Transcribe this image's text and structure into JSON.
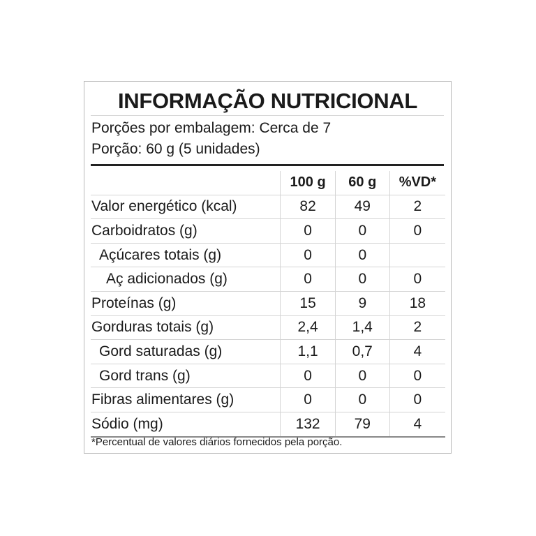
{
  "title": "INFORMAÇÃO NUTRICIONAL",
  "servings_per_package": "Porções por embalagem: Cerca de 7",
  "serving_size": "Porção: 60 g (5 unidades)",
  "columns": [
    "",
    "100 g",
    "60 g",
    "%VD*"
  ],
  "rows": [
    {
      "label": "Valor energético (kcal)",
      "indent": 0,
      "v100": "82",
      "v60": "49",
      "vd": "2"
    },
    {
      "label": "Carboidratos (g)",
      "indent": 0,
      "v100": "0",
      "v60": "0",
      "vd": "0"
    },
    {
      "label": "Açúcares totais (g)",
      "indent": 1,
      "v100": "0",
      "v60": "0",
      "vd": ""
    },
    {
      "label": "Aç adicionados (g)",
      "indent": 2,
      "v100": "0",
      "v60": "0",
      "vd": "0"
    },
    {
      "label": "Proteínas (g)",
      "indent": 0,
      "v100": "15",
      "v60": "9",
      "vd": "18"
    },
    {
      "label": "Gorduras totais (g)",
      "indent": 0,
      "v100": "2,4",
      "v60": "1,4",
      "vd": "2"
    },
    {
      "label": "Gord saturadas (g)",
      "indent": 1,
      "v100": "1,1",
      "v60": "0,7",
      "vd": "4"
    },
    {
      "label": "Gord trans (g)",
      "indent": 1,
      "v100": "0",
      "v60": "0",
      "vd": "0"
    },
    {
      "label": "Fibras alimentares (g)",
      "indent": 0,
      "v100": "0",
      "v60": "0",
      "vd": "0"
    },
    {
      "label": "Sódio (mg)",
      "indent": 0,
      "v100": "132",
      "v60": "79",
      "vd": "4"
    }
  ],
  "footnote": "*Percentual de valores diários fornecidos pela porção."
}
